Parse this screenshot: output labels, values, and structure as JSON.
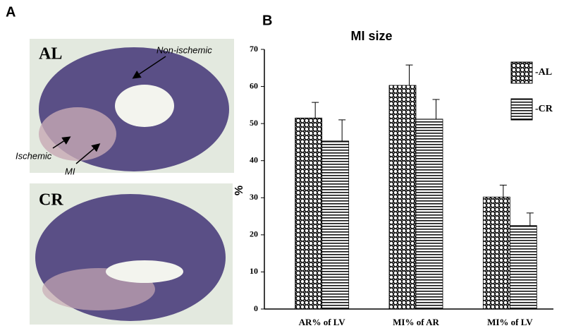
{
  "panel_a": {
    "label": "A",
    "photos": [
      {
        "label": "AL",
        "annotations": [
          "Non-ischemic",
          "Ischemic",
          "MI"
        ]
      },
      {
        "label": "CR"
      }
    ]
  },
  "chart_data": {
    "type": "bar",
    "panel_label": "B",
    "title": "MI size",
    "y_label": "%",
    "categories": [
      "AR% of LV",
      "MI% of AR",
      "MI% of LV"
    ],
    "series": [
      {
        "name": "-AL",
        "color": "#000000",
        "pattern": "dots",
        "values": [
          51.5,
          60.3,
          30.2
        ],
        "errors": [
          4.2,
          5.5,
          3.2
        ]
      },
      {
        "name": "-CR",
        "color": "#000000",
        "pattern": "stripes",
        "values": [
          45.3,
          51.2,
          22.5
        ],
        "errors": [
          5.7,
          5.3,
          3.4
        ]
      }
    ],
    "ylim": [
      0,
      70
    ],
    "yticks": [
      0,
      10,
      20,
      30,
      40,
      50,
      60,
      70
    ],
    "grid": false,
    "legend": "upper right"
  }
}
